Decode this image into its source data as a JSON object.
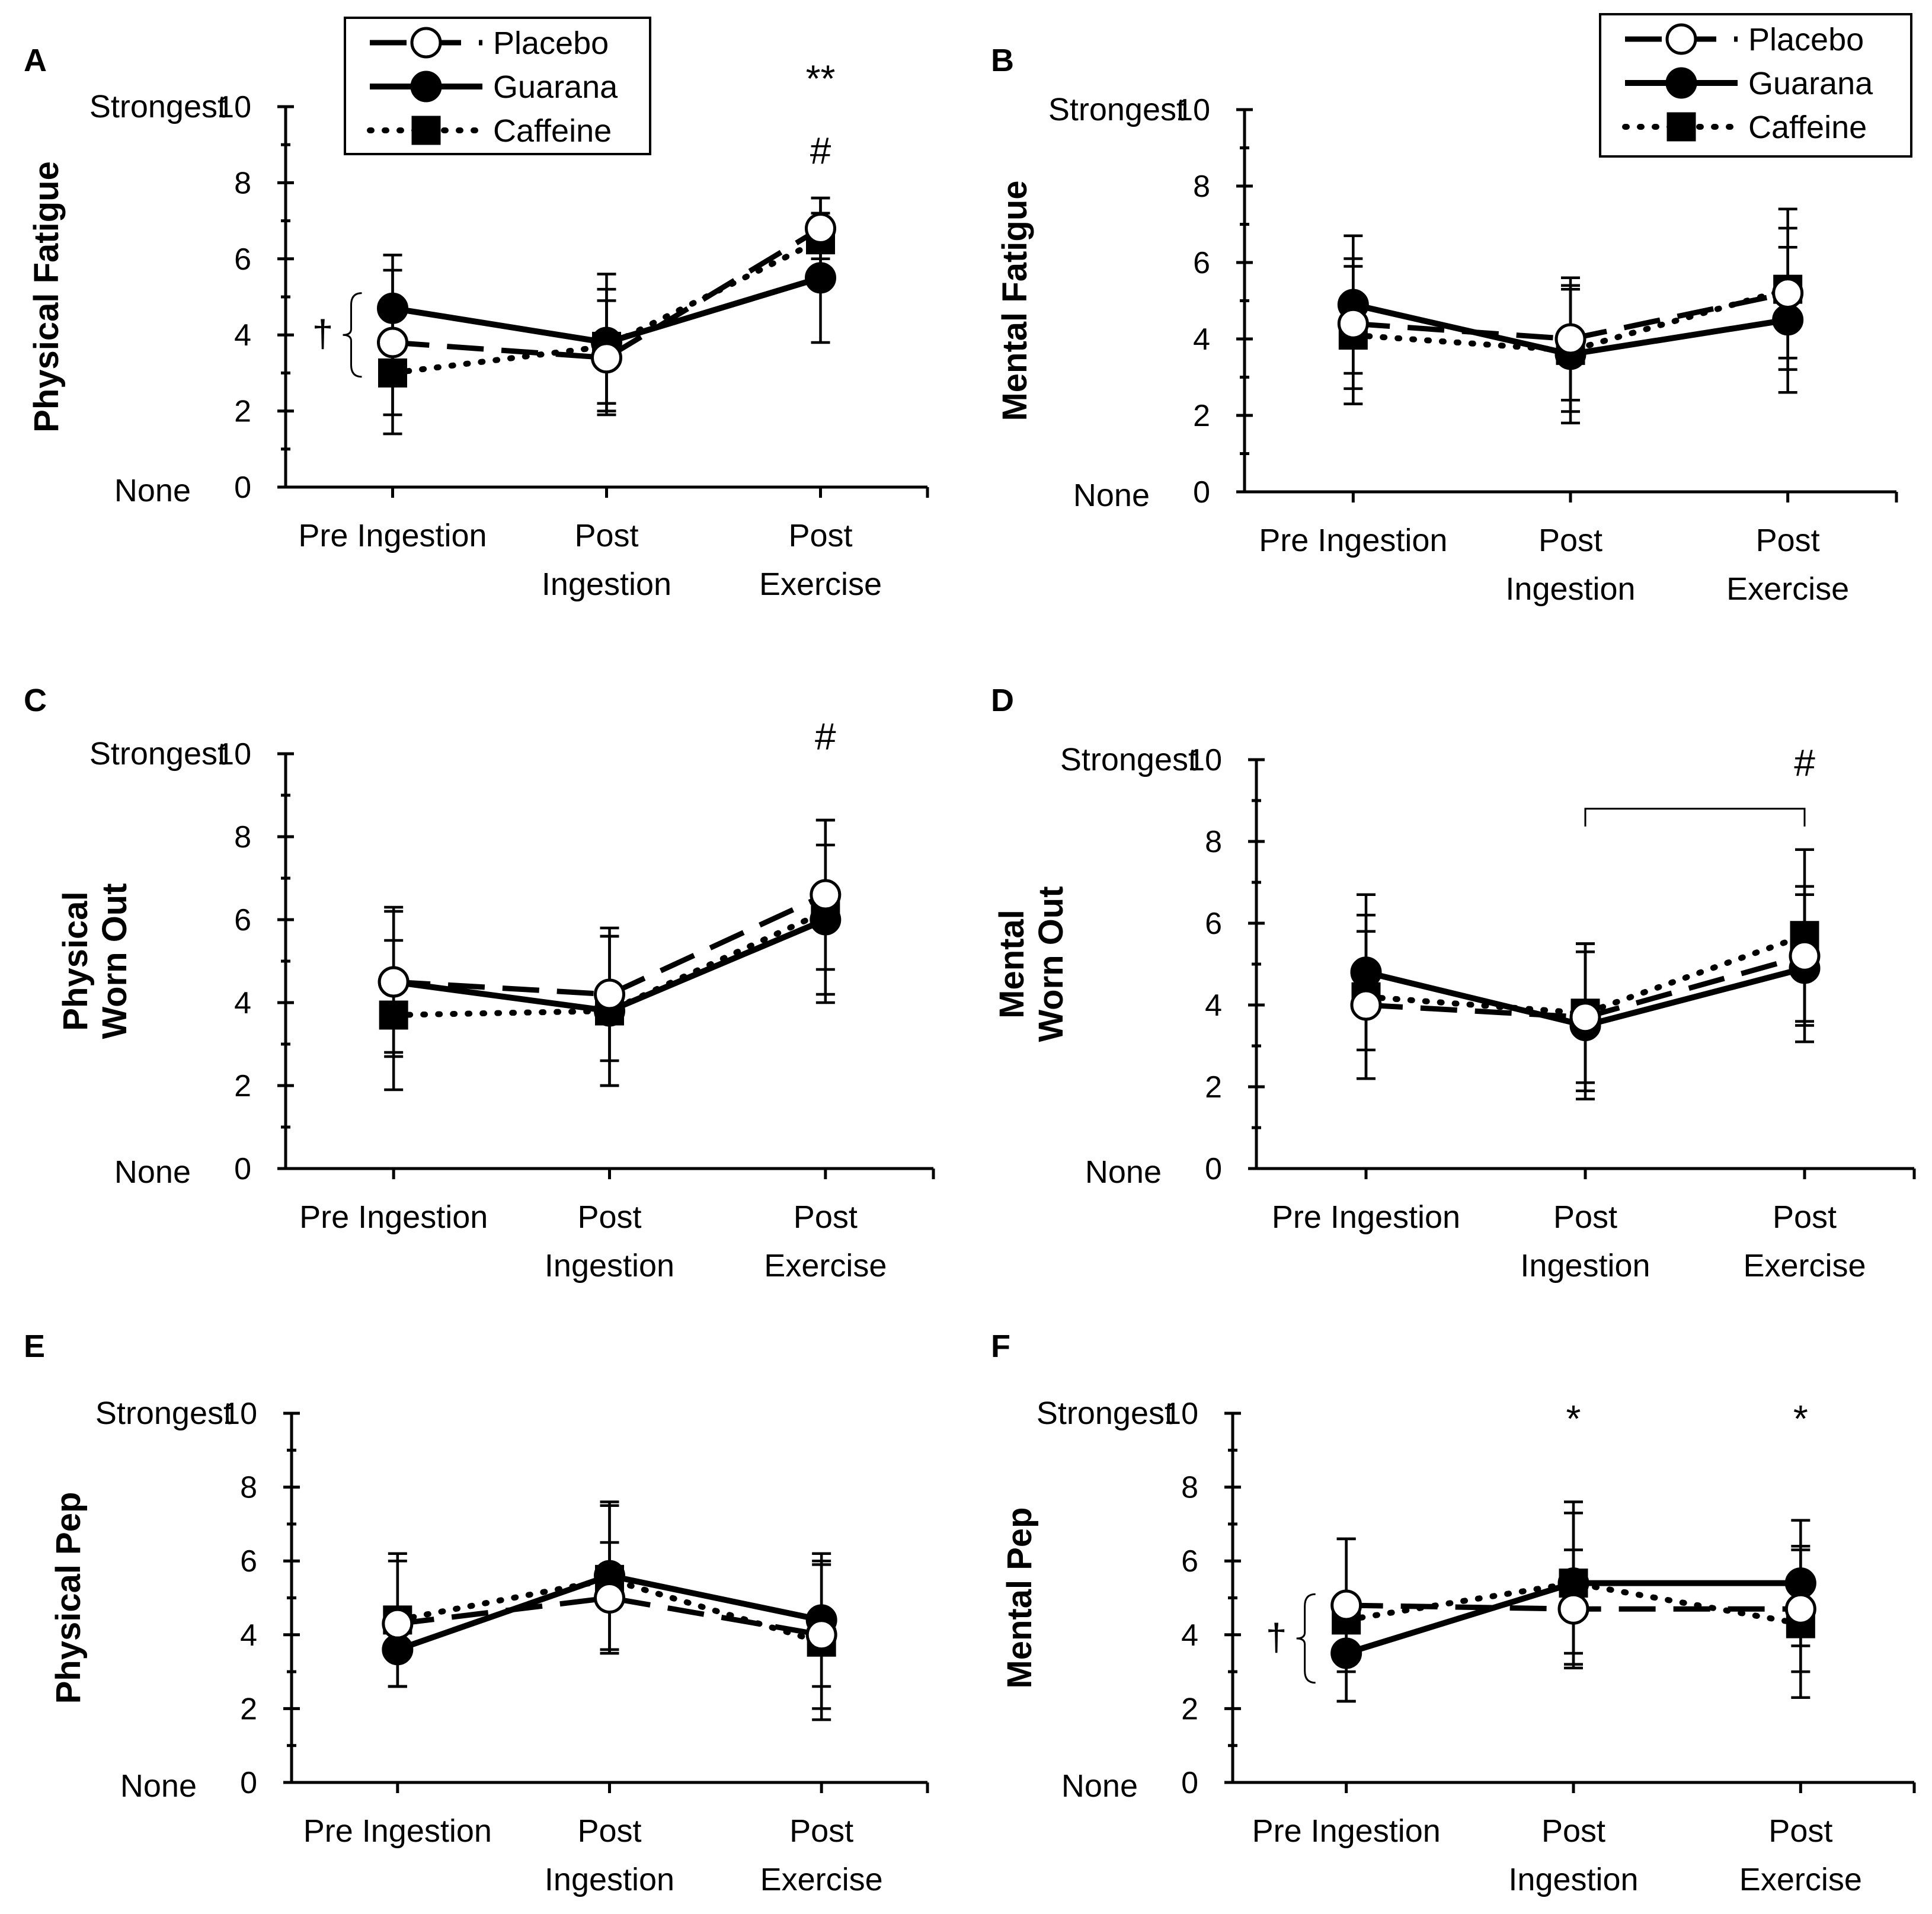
{
  "series_styles": [
    {
      "name": "Placebo",
      "line": "dashed",
      "marker": "circle-open"
    },
    {
      "name": "Guarana",
      "line": "solid",
      "marker": "circle-filled"
    },
    {
      "name": "Caffeine",
      "line": "dotted",
      "marker": "square-filled"
    }
  ],
  "colors": {
    "ink": "#000000",
    "background": "#ffffff"
  },
  "chart_data": [
    {
      "type": "line",
      "panel": "A",
      "ylabel": [
        "Physical Fatigue"
      ],
      "ylim": [
        0,
        10
      ],
      "yticks": [
        0,
        2,
        4,
        6,
        8,
        10
      ],
      "y_top_label": "Strongest",
      "y_bottom_label": "None",
      "categories": [
        [
          "Pre Ingestion"
        ],
        [
          "Post",
          "Ingestion"
        ],
        [
          "Post",
          "Exercise"
        ]
      ],
      "series": [
        {
          "name": "Placebo",
          "values": [
            3.8,
            3.4,
            6.8
          ],
          "errors": [
            1.9,
            1.5,
            0.8
          ]
        },
        {
          "name": "Guarana",
          "values": [
            4.7,
            3.8,
            5.5
          ],
          "errors": [
            1.4,
            1.8,
            1.7
          ]
        },
        {
          "name": "Caffeine",
          "values": [
            3.0,
            3.7,
            6.5
          ],
          "errors": [
            1.6,
            1.5,
            1.1
          ]
        }
      ],
      "legend": [
        "Placebo",
        "Guarana",
        "Caffeine"
      ],
      "annotations": [
        {
          "text": "**",
          "category": 2,
          "y": 10.4
        },
        {
          "text": "#",
          "category": 2,
          "y": 8.5
        },
        {
          "text": "†",
          "type": "brace-left",
          "category": 0,
          "y_from": 2.9,
          "y_to": 5.1
        }
      ]
    },
    {
      "type": "line",
      "panel": "B",
      "ylabel": [
        "Mental Fatigue"
      ],
      "ylim": [
        0,
        10
      ],
      "yticks": [
        0,
        2,
        4,
        6,
        8,
        10
      ],
      "y_top_label": "Strongest",
      "y_bottom_label": "None",
      "categories": [
        [
          "Pre Ingestion"
        ],
        [
          "Post",
          "Ingestion"
        ],
        [
          "Post",
          "Exercise"
        ]
      ],
      "series": [
        {
          "name": "Placebo",
          "values": [
            4.4,
            4.0,
            5.2
          ],
          "errors": [
            1.7,
            1.6,
            1.7
          ]
        },
        {
          "name": "Guarana",
          "values": [
            4.9,
            3.6,
            4.5
          ],
          "errors": [
            1.8,
            1.8,
            1.9
          ]
        },
        {
          "name": "Caffeine",
          "values": [
            4.1,
            3.7,
            5.3
          ],
          "errors": [
            1.8,
            1.6,
            2.1
          ]
        }
      ],
      "legend": [
        "Placebo",
        "Guarana",
        "Caffeine"
      ],
      "annotations": []
    },
    {
      "type": "line",
      "panel": "C",
      "ylabel": [
        "Physical",
        "Worn Out"
      ],
      "ylim": [
        0,
        10
      ],
      "yticks": [
        0,
        2,
        4,
        6,
        8,
        10
      ],
      "y_top_label": "Strongest",
      "y_bottom_label": "None",
      "categories": [
        [
          "Pre Ingestion"
        ],
        [
          "Post",
          "Ingestion"
        ],
        [
          "Post",
          "Exercise"
        ]
      ],
      "series": [
        {
          "name": "Placebo",
          "values": [
            4.5,
            4.2,
            6.6
          ],
          "errors": [
            1.8,
            1.6,
            1.8
          ]
        },
        {
          "name": "Guarana",
          "values": [
            4.5,
            3.8,
            6.0
          ],
          "errors": [
            1.7,
            1.8,
            1.8
          ]
        },
        {
          "name": "Caffeine",
          "values": [
            3.7,
            3.8,
            6.2
          ],
          "errors": [
            1.8,
            1.8,
            2.2
          ]
        }
      ],
      "legend": [],
      "annotations": [
        {
          "text": "#",
          "category": 2,
          "y": 10.1
        }
      ]
    },
    {
      "type": "line",
      "panel": "D",
      "ylabel": [
        "Mental",
        "Worn Out"
      ],
      "ylim": [
        0,
        10
      ],
      "yticks": [
        0,
        2,
        4,
        6,
        8,
        10
      ],
      "y_top_label": "Strongest",
      "y_bottom_label": "None",
      "categories": [
        [
          "Pre Ingestion"
        ],
        [
          "Post",
          "Ingestion"
        ],
        [
          "Post",
          "Exercise"
        ]
      ],
      "series": [
        {
          "name": "Placebo",
          "values": [
            4.0,
            3.7,
            5.2
          ],
          "errors": [
            1.8,
            1.8,
            1.7
          ]
        },
        {
          "name": "Guarana",
          "values": [
            4.8,
            3.5,
            4.9
          ],
          "errors": [
            1.9,
            1.8,
            1.8
          ]
        },
        {
          "name": "Caffeine",
          "values": [
            4.2,
            3.8,
            5.7
          ],
          "errors": [
            2.0,
            1.7,
            2.1
          ]
        }
      ],
      "legend": [],
      "annotations": [
        {
          "text": "#",
          "category": 2,
          "y": 9.6
        },
        {
          "type": "bracket-top",
          "from_category": 1,
          "to_category": 2,
          "y": 8.8
        }
      ]
    },
    {
      "type": "line",
      "panel": "E",
      "ylabel": [
        "Physical Pep"
      ],
      "ylim": [
        0,
        10
      ],
      "yticks": [
        0,
        2,
        4,
        6,
        8,
        10
      ],
      "y_top_label": "Strongest",
      "y_bottom_label": "None",
      "categories": [
        [
          "Pre Ingestion"
        ],
        [
          "Post",
          "Ingestion"
        ],
        [
          "Post",
          "Exercise"
        ]
      ],
      "series": [
        {
          "name": "Placebo",
          "values": [
            4.3,
            5.0,
            4.0
          ],
          "errors": [
            1.7,
            1.5,
            2.0
          ]
        },
        {
          "name": "Guarana",
          "values": [
            3.6,
            5.6,
            4.4
          ],
          "errors": [
            1.0,
            2.0,
            1.8
          ]
        },
        {
          "name": "Caffeine",
          "values": [
            4.4,
            5.5,
            3.8
          ],
          "errors": [
            1.8,
            2.0,
            2.1
          ]
        }
      ],
      "legend": [],
      "annotations": []
    },
    {
      "type": "line",
      "panel": "F",
      "ylabel": [
        "Mental Pep"
      ],
      "ylim": [
        0,
        10
      ],
      "yticks": [
        0,
        2,
        4,
        6,
        8,
        10
      ],
      "y_top_label": "Strongest",
      "y_bottom_label": "None",
      "categories": [
        [
          "Pre Ingestion"
        ],
        [
          "Post",
          "Ingestion"
        ],
        [
          "Post",
          "Exercise"
        ]
      ],
      "series": [
        {
          "name": "Placebo",
          "values": [
            4.8,
            4.7,
            4.7
          ],
          "errors": [
            1.8,
            1.6,
            1.7
          ]
        },
        {
          "name": "Guarana",
          "values": [
            3.5,
            5.4,
            5.4
          ],
          "errors": [
            1.3,
            2.2,
            1.7
          ]
        },
        {
          "name": "Caffeine",
          "values": [
            4.4,
            5.4,
            4.3
          ],
          "errors": [
            2.2,
            1.9,
            2.0
          ]
        }
      ],
      "legend": [],
      "annotations": [
        {
          "text": "*",
          "category": 1,
          "y": 9.5
        },
        {
          "text": "*",
          "category": 2,
          "y": 9.5
        },
        {
          "text": "†",
          "type": "brace-left",
          "category": 0,
          "y_from": 2.7,
          "y_to": 5.1
        }
      ]
    }
  ]
}
